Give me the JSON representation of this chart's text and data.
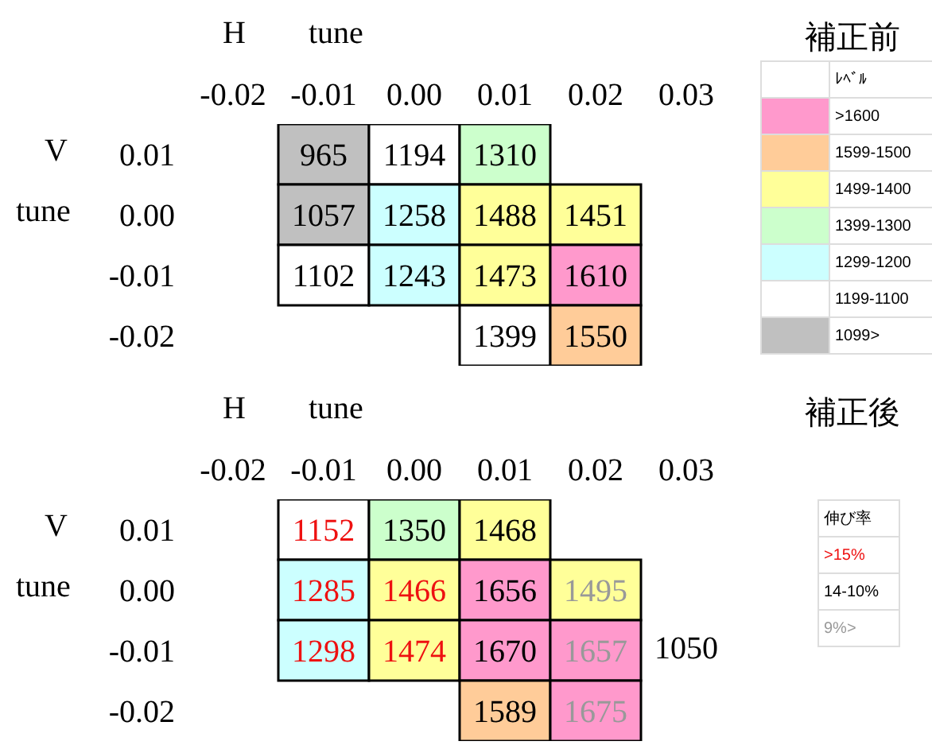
{
  "chart_data": [
    {
      "type": "heatmap",
      "xlabel": "H tune",
      "ylabel": "V tune",
      "data_labels": true,
      "categories": [
        "-0.02",
        "-0.01",
        "0.00",
        "0.01",
        "0.02",
        "0.03"
      ],
      "y_categories": [
        "0.01",
        "0.00",
        "-0.01",
        "-0.02"
      ],
      "cells": [
        [
          null,
          965,
          1194,
          1310,
          null,
          null
        ],
        [
          null,
          1057,
          1258,
          1488,
          1451,
          null
        ],
        [
          null,
          1102,
          1243,
          1473,
          1610,
          null
        ],
        [
          null,
          null,
          null,
          1399,
          1550,
          null
        ]
      ],
      "colors": [
        [
          null,
          "#c0c0c0",
          "#ffffff",
          "#ccffcc",
          null,
          null
        ],
        [
          null,
          "#c0c0c0",
          "#ccffff",
          "#ffff99",
          "#ffff99",
          null
        ],
        [
          null,
          "#ffffff",
          "#ccffff",
          "#ffff99",
          "#ff99cc",
          null
        ],
        [
          null,
          null,
          null,
          "#ffffff",
          "#ffcc99",
          null
        ]
      ]
    },
    {
      "type": "other",
      "title": "補正前",
      "legend_title": "ﾚﾍﾞﾙ",
      "categories": [
        ">1600",
        "1599-1500",
        "1499-1400",
        "1399-1300",
        "1299-1200",
        "1199-1100",
        "1099>"
      ],
      "colors": [
        "#ff99cc",
        "#ffcc99",
        "#ffff99",
        "#ccffcc",
        "#ccffff",
        "#ffffff",
        "#c0c0c0"
      ]
    },
    {
      "type": "heatmap",
      "xlabel": "H tune",
      "ylabel": "V tune",
      "data_labels": true,
      "categories": [
        "-0.02",
        "-0.01",
        "0.00",
        "0.01",
        "0.02",
        "0.03"
      ],
      "y_categories": [
        "0.01",
        "0.00",
        "-0.01",
        "-0.02"
      ],
      "cells": [
        [
          null,
          1152,
          1350,
          1468,
          null,
          null
        ],
        [
          null,
          1285,
          1466,
          1656,
          1495,
          null
        ],
        [
          null,
          1298,
          1474,
          1670,
          1657,
          null
        ],
        [
          null,
          null,
          null,
          1589,
          1675,
          null
        ]
      ],
      "colors": [
        [
          null,
          "#ffffff",
          "#ccffcc",
          "#ffff99",
          null,
          null
        ],
        [
          null,
          "#ccffff",
          "#ffff99",
          "#ff99cc",
          "#ffff99",
          null
        ],
        [
          null,
          "#ccffff",
          "#ffff99",
          "#ff99cc",
          "#ff99cc",
          null
        ],
        [
          null,
          null,
          null,
          "#ffcc99",
          "#ff99cc",
          null
        ]
      ],
      "annotations": [
        "1050"
      ]
    },
    {
      "type": "other",
      "title": "補正後",
      "legend_title": "伸び率",
      "categories": [
        ">15%",
        "14-10%",
        "9%>"
      ],
      "colors": [
        "#ee1111",
        "#000000",
        "#999999"
      ]
    }
  ]
}
